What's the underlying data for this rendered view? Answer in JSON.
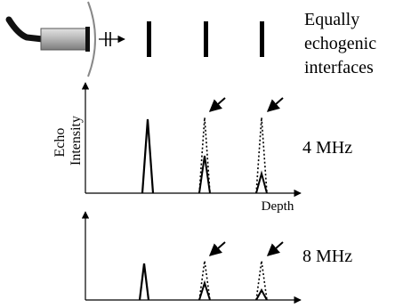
{
  "header_caption": [
    "Equally",
    "echogenic",
    "interfaces"
  ],
  "top_panel": {
    "y_axis_label": [
      "Echo",
      "Intensity"
    ],
    "x_axis_label": "Depth",
    "frequency_label": "4 MHz"
  },
  "bottom_panel": {
    "frequency_label": "8 MHz"
  },
  "colors": {
    "ink": "#000000",
    "transducer_body": "#a8a8a8",
    "cable": "#111111",
    "lens": "#888888"
  }
}
